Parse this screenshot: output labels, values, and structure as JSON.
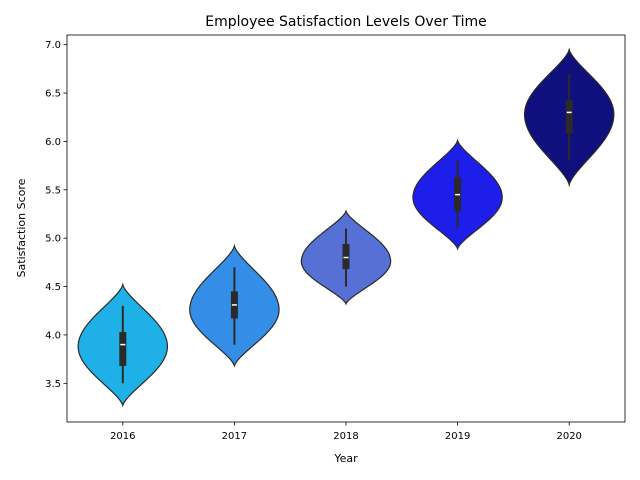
{
  "chart_data": {
    "type": "violin",
    "title": "Employee Satisfaction Levels Over Time",
    "xlabel": "Year",
    "ylabel": "Satisfaction Score",
    "categories": [
      "2016",
      "2017",
      "2018",
      "2019",
      "2020"
    ],
    "ylim": [
      3.1,
      7.1
    ],
    "yticks": [
      "3.5",
      "4.0",
      "4.5",
      "5.0",
      "5.5",
      "6.0",
      "6.5",
      "7.0"
    ],
    "grid": false,
    "legend": "none",
    "series": [
      {
        "category": "2016",
        "color": "#1eb0e6",
        "kde_min": 3.27,
        "kde_max": 4.52,
        "whisker_low": 3.5,
        "q1": 3.68,
        "median": 3.9,
        "q3": 4.03,
        "whisker_high": 4.3,
        "mode": 3.88
      },
      {
        "category": "2017",
        "color": "#348ee8",
        "kde_min": 3.68,
        "kde_max": 4.92,
        "whisker_low": 3.9,
        "q1": 4.17,
        "median": 4.31,
        "q3": 4.45,
        "whisker_high": 4.7,
        "mode": 4.26
      },
      {
        "category": "2018",
        "color": "#5670d6",
        "kde_min": 4.32,
        "kde_max": 5.28,
        "whisker_low": 4.5,
        "q1": 4.68,
        "median": 4.8,
        "q3": 4.94,
        "whisker_high": 5.1,
        "mode": 4.76
      },
      {
        "category": "2019",
        "color": "#1e1eeb",
        "kde_min": 4.89,
        "kde_max": 6.01,
        "whisker_low": 5.1,
        "q1": 5.28,
        "median": 5.45,
        "q3": 5.63,
        "whisker_high": 5.8,
        "mode": 5.42
      },
      {
        "category": "2020",
        "color": "#0f0f7d",
        "kde_min": 5.55,
        "kde_max": 6.95,
        "whisker_low": 5.8,
        "q1": 6.08,
        "median": 6.3,
        "q3": 6.43,
        "whisker_high": 6.7,
        "mode": 6.28
      }
    ]
  }
}
